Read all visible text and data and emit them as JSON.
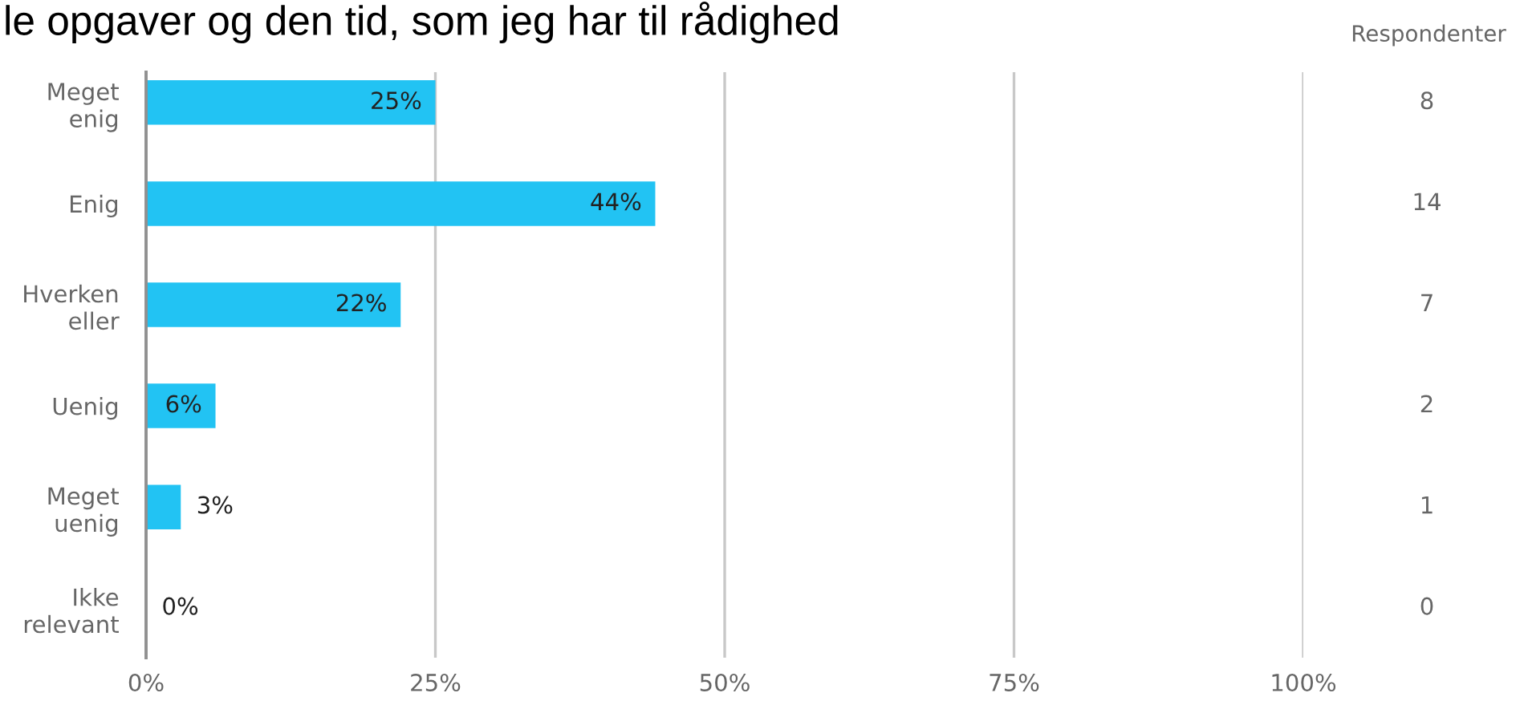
{
  "chart_data": {
    "type": "bar",
    "orientation": "horizontal",
    "title": "le opgaver og den tid, som jeg har til rådighed",
    "categories": [
      "Meget\nenig",
      "Enig",
      "Hverken\neller",
      "Uenig",
      "Meget\nuenig",
      "Ikke\nrelevant"
    ],
    "values": [
      25,
      44,
      22,
      6,
      3,
      0
    ],
    "value_labels": [
      "25%",
      "44%",
      "22%",
      "6%",
      "3%",
      "0%"
    ],
    "color": "#22c3f3",
    "xlim": [
      0,
      100
    ],
    "xticks": [
      {
        "value": 0,
        "label": "0%"
      },
      {
        "value": 25,
        "label": "25%"
      },
      {
        "value": 50,
        "label": "50%"
      },
      {
        "value": 75,
        "label": "75%"
      },
      {
        "value": 100,
        "label": "100%"
      }
    ],
    "grid": "x",
    "annotations": [
      "Respondenter",
      "8",
      "14",
      "7",
      "2",
      "1",
      "0"
    ]
  }
}
